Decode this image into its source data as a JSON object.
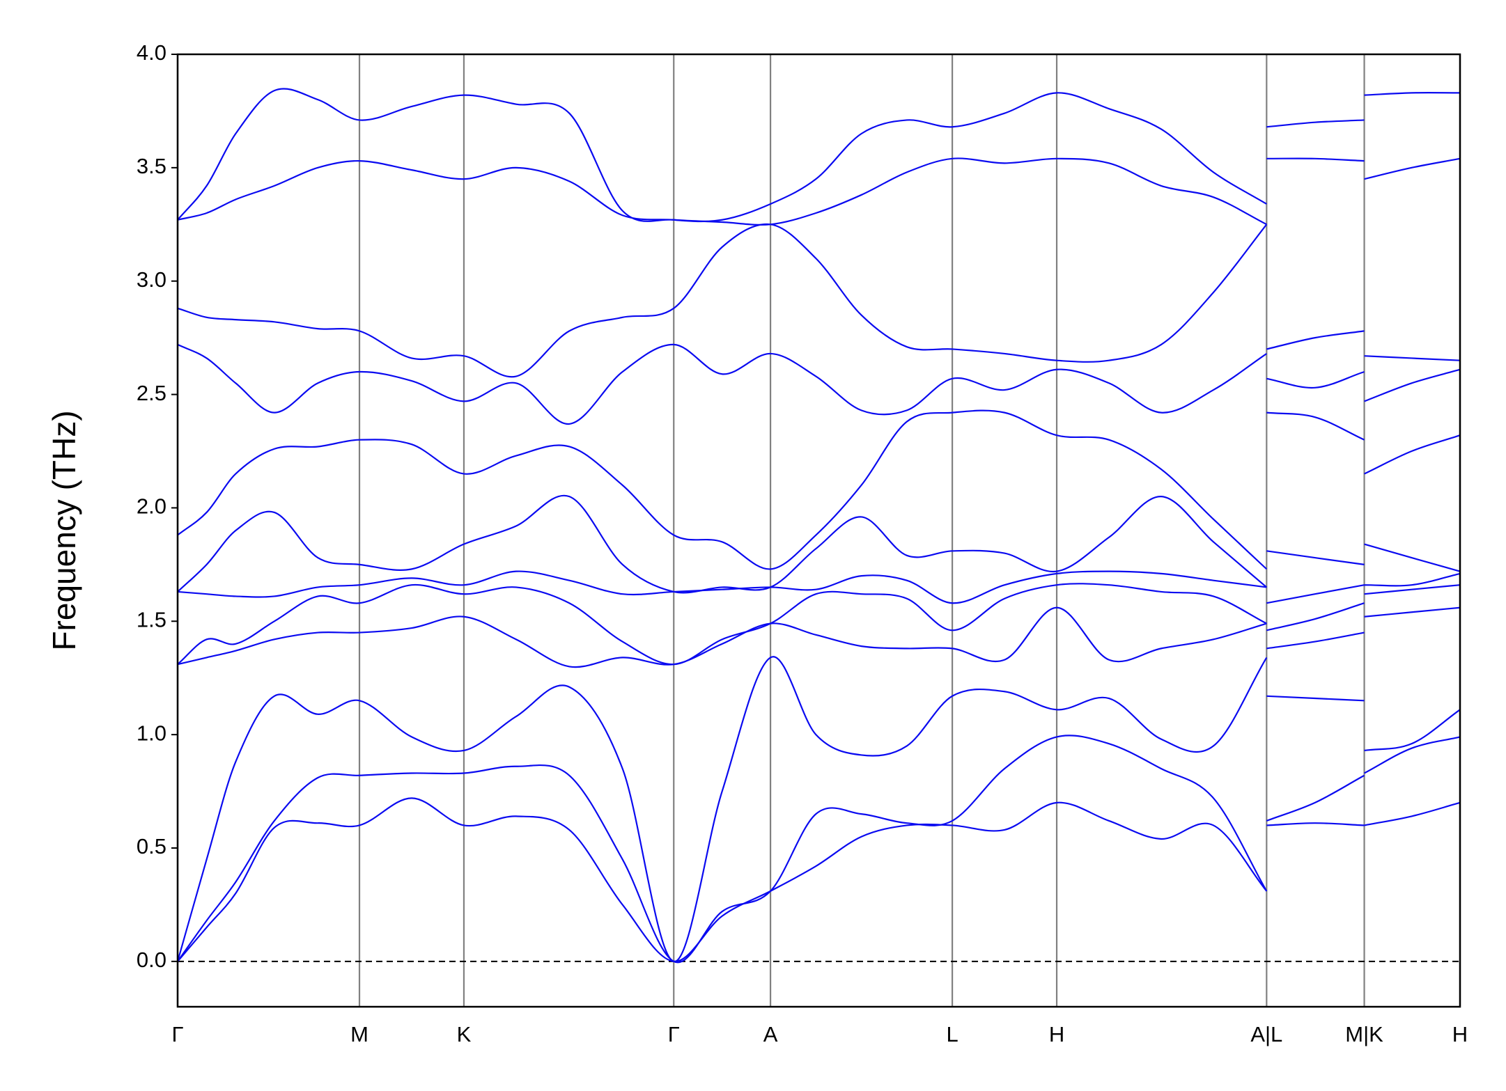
{
  "chart_data": {
    "type": "line",
    "ylabel": "Frequency (THz)",
    "color": "#0a0af0",
    "xlim": [
      0,
      1326
    ],
    "ylim": [
      -0.2,
      4.0
    ],
    "xticks": [
      {
        "value": 0,
        "label": "Γ"
      },
      {
        "value": 188,
        "label": "M"
      },
      {
        "value": 296,
        "label": "K"
      },
      {
        "value": 513,
        "label": "Γ"
      },
      {
        "value": 613,
        "label": "A"
      },
      {
        "value": 801,
        "label": "L"
      },
      {
        "value": 909,
        "label": "H"
      },
      {
        "value": 1126,
        "label": "A|L"
      },
      {
        "value": 1227,
        "label": "M|K"
      },
      {
        "value": 1326,
        "label": "H"
      }
    ],
    "yticks": [
      {
        "value": 0,
        "label": "0.0"
      },
      0.5,
      {
        "value": 1,
        "label": "1.0"
      },
      1.5,
      {
        "value": 2,
        "label": "2.0"
      },
      2.5,
      {
        "value": 3,
        "label": "3.0"
      },
      3.5,
      {
        "value": 4,
        "label": "4.0"
      }
    ],
    "zero_line": 0,
    "x": [
      0,
      30,
      60,
      100,
      145,
      188,
      242,
      296,
      350,
      405,
      460,
      513,
      563,
      613,
      660,
      707,
      754,
      801,
      855,
      909,
      963,
      1017,
      1071,
      1126,
      1126,
      1126,
      1176,
      1227,
      1227,
      1227,
      1276,
      1326
    ],
    "series": [
      {
        "values": [
          0,
          0.15,
          0.3,
          0.59,
          0.61,
          0.6,
          0.72,
          0.6,
          0.64,
          0.58,
          0.25,
          0,
          0.2,
          0.31,
          0.42,
          0.55,
          0.6,
          0.6,
          0.58,
          0.7,
          0.62,
          0.54,
          0.6,
          0.31,
          null,
          0.6,
          0.61,
          0.6,
          null,
          0.6,
          0.64,
          0.7
        ]
      },
      {
        "values": [
          0,
          0.18,
          0.35,
          0.62,
          0.81,
          0.82,
          0.83,
          0.83,
          0.86,
          0.82,
          0.45,
          0,
          0.22,
          0.31,
          0.65,
          0.65,
          0.61,
          0.62,
          0.85,
          0.99,
          0.96,
          0.85,
          0.72,
          0.31,
          null,
          0.62,
          0.7,
          0.82,
          null,
          0.83,
          0.94,
          0.99
        ]
      },
      {
        "values": [
          0,
          0.45,
          0.88,
          1.17,
          1.09,
          1.15,
          0.99,
          0.93,
          1.08,
          1.21,
          0.85,
          0,
          0.75,
          1.34,
          1.0,
          0.91,
          0.95,
          1.17,
          1.19,
          1.11,
          1.16,
          0.98,
          0.95,
          1.34,
          null,
          1.17,
          1.16,
          1.15,
          null,
          0.93,
          0.96,
          1.11
        ]
      },
      {
        "values": [
          1.31,
          1.34,
          1.37,
          1.42,
          1.45,
          1.45,
          1.47,
          1.52,
          1.42,
          1.3,
          1.34,
          1.31,
          1.4,
          1.49,
          1.44,
          1.39,
          1.38,
          1.38,
          1.33,
          1.56,
          1.33,
          1.38,
          1.42,
          1.49,
          null,
          1.38,
          1.41,
          1.45,
          null,
          1.52,
          1.54,
          1.56
        ]
      },
      {
        "values": [
          1.31,
          1.42,
          1.4,
          1.5,
          1.61,
          1.58,
          1.66,
          1.62,
          1.65,
          1.58,
          1.41,
          1.31,
          1.42,
          1.49,
          1.62,
          1.62,
          1.6,
          1.46,
          1.6,
          1.66,
          1.66,
          1.63,
          1.61,
          1.49,
          null,
          1.46,
          1.51,
          1.58,
          null,
          1.62,
          1.64,
          1.66
        ]
      },
      {
        "values": [
          1.63,
          1.62,
          1.61,
          1.61,
          1.65,
          1.66,
          1.69,
          1.66,
          1.72,
          1.68,
          1.62,
          1.63,
          1.64,
          1.65,
          1.64,
          1.7,
          1.68,
          1.58,
          1.66,
          1.71,
          1.72,
          1.71,
          1.68,
          1.65,
          null,
          1.58,
          1.62,
          1.66,
          null,
          1.66,
          1.66,
          1.71
        ]
      },
      {
        "values": [
          1.63,
          1.75,
          1.9,
          1.98,
          1.78,
          1.75,
          1.73,
          1.84,
          1.92,
          2.05,
          1.75,
          1.63,
          1.65,
          1.65,
          1.82,
          1.96,
          1.79,
          1.81,
          1.8,
          1.72,
          1.87,
          2.05,
          1.85,
          1.65,
          null,
          1.81,
          1.78,
          1.75,
          null,
          1.84,
          1.78,
          1.72
        ]
      },
      {
        "values": [
          1.88,
          1.98,
          2.15,
          2.26,
          2.27,
          2.3,
          2.28,
          2.15,
          2.23,
          2.27,
          2.1,
          1.88,
          1.85,
          1.73,
          1.88,
          2.1,
          2.38,
          2.42,
          2.42,
          2.32,
          2.3,
          2.17,
          1.95,
          1.73,
          null,
          2.42,
          2.4,
          2.3,
          null,
          2.15,
          2.25,
          2.32
        ]
      },
      {
        "values": [
          2.72,
          2.66,
          2.55,
          2.42,
          2.55,
          2.6,
          2.56,
          2.47,
          2.55,
          2.37,
          2.6,
          2.72,
          2.59,
          2.68,
          2.58,
          2.43,
          2.43,
          2.57,
          2.52,
          2.61,
          2.55,
          2.42,
          2.52,
          2.68,
          null,
          2.57,
          2.53,
          2.6,
          null,
          2.47,
          2.55,
          2.61
        ]
      },
      {
        "values": [
          2.88,
          2.84,
          2.83,
          2.82,
          2.79,
          2.78,
          2.66,
          2.67,
          2.58,
          2.78,
          2.84,
          2.88,
          3.15,
          3.25,
          3.1,
          2.85,
          2.71,
          2.7,
          2.68,
          2.65,
          2.65,
          2.72,
          2.95,
          3.25,
          null,
          2.7,
          2.75,
          2.78,
          null,
          2.67,
          2.66,
          2.65
        ]
      },
      {
        "values": [
          3.27,
          3.3,
          3.36,
          3.42,
          3.5,
          3.53,
          3.49,
          3.45,
          3.5,
          3.44,
          3.29,
          3.27,
          3.26,
          3.25,
          3.3,
          3.38,
          3.48,
          3.54,
          3.52,
          3.54,
          3.52,
          3.42,
          3.37,
          3.25,
          null,
          3.54,
          3.54,
          3.53,
          null,
          3.45,
          3.5,
          3.54
        ]
      },
      {
        "values": [
          3.27,
          3.42,
          3.65,
          3.84,
          3.8,
          3.71,
          3.77,
          3.82,
          3.78,
          3.74,
          3.31,
          3.27,
          3.27,
          3.34,
          3.45,
          3.65,
          3.71,
          3.68,
          3.74,
          3.83,
          3.76,
          3.67,
          3.48,
          3.34,
          null,
          3.68,
          3.7,
          3.71,
          null,
          3.82,
          3.83,
          3.83
        ]
      }
    ]
  }
}
